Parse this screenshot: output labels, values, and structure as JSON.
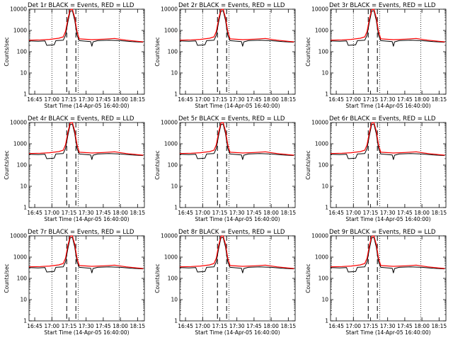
{
  "chart_data": {
    "type": "line",
    "panels": [
      {
        "title": "Det 1r BLACK = Events, RED = LLD"
      },
      {
        "title": "Det 2r BLACK = Events, RED = LLD"
      },
      {
        "title": "Det 3r BLACK = Events, RED = LLD"
      },
      {
        "title": "Det 4r BLACK = Events, RED = LLD"
      },
      {
        "title": "Det 5r BLACK = Events, RED = LLD"
      },
      {
        "title": "Det 6r BLACK = Events, RED = LLD"
      },
      {
        "title": "Det 7r BLACK = Events, RED = LLD"
      },
      {
        "title": "Det 8r BLACK = Events, RED = LLD"
      },
      {
        "title": "Det 9r BLACK = Events, RED = LLD"
      }
    ],
    "xlabel": "Start Time (14-Apr-05 16:40:00)",
    "ylabel": "Counts/sec",
    "y_scale": "log",
    "ylim": [
      1,
      10000
    ],
    "y_ticks": [
      1,
      10,
      100,
      1000,
      10000
    ],
    "x_tick_labels": [
      "16:45",
      "17:00",
      "17:15",
      "17:30",
      "17:45",
      "18:00",
      "18:15"
    ],
    "xlim_minutes_after_16_40": [
      0,
      101
    ],
    "x_tick_minutes_after_16_40": [
      5,
      20,
      35,
      50,
      65,
      80,
      95
    ],
    "dotted_lines_minutes_after_16_40": [
      20,
      43,
      79
    ],
    "dashed_lines_minutes_after_16_40": [
      33,
      41
    ],
    "series": [
      {
        "name": "Events",
        "color": "#000000",
        "points": [
          [
            0,
            320
          ],
          [
            8,
            310
          ],
          [
            14,
            320
          ],
          [
            15.5,
            200
          ],
          [
            22,
            210
          ],
          [
            23.5,
            330
          ],
          [
            30,
            350
          ],
          [
            32,
            600
          ],
          [
            34,
            2500
          ],
          [
            36,
            8000
          ],
          [
            38,
            8500
          ],
          [
            40,
            3000
          ],
          [
            42,
            600
          ],
          [
            44,
            330
          ],
          [
            54,
            300
          ],
          [
            55,
            180
          ],
          [
            56,
            290
          ],
          [
            60,
            330
          ],
          [
            70,
            350
          ],
          [
            80,
            330
          ],
          [
            90,
            300
          ],
          [
            100,
            280
          ]
        ]
      },
      {
        "name": "LLD",
        "color": "#ff0000",
        "points": [
          [
            0,
            350
          ],
          [
            10,
            360
          ],
          [
            18,
            380
          ],
          [
            26,
            430
          ],
          [
            30,
            500
          ],
          [
            32,
            900
          ],
          [
            34,
            3500
          ],
          [
            36,
            9500
          ],
          [
            38,
            10000
          ],
          [
            40,
            4000
          ],
          [
            42,
            900
          ],
          [
            44,
            400
          ],
          [
            55,
            370
          ],
          [
            65,
            390
          ],
          [
            75,
            420
          ],
          [
            85,
            350
          ],
          [
            95,
            310
          ],
          [
            100,
            290
          ]
        ]
      }
    ],
    "legend": "none",
    "grid": false
  }
}
